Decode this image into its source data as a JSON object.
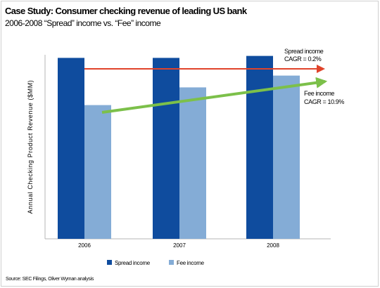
{
  "title": "Case Study: Consumer checking revenue of leading US bank",
  "subtitle": "2006-2008 “Spread” income vs. “Fee” income",
  "source": "Source: SEC Filings, Oliver Wyman analysis",
  "colors": {
    "spread": "#0f4c9e",
    "fee": "#84acd6",
    "spread_arrow": "#e0432a",
    "fee_arrow": "#7cc04a"
  },
  "chart_data": {
    "type": "bar",
    "categories": [
      "2006",
      "2007",
      "2008"
    ],
    "ylabel": "Annual Checking Product Revenue ($MM)",
    "ylim": [
      0,
      100
    ],
    "y_ticks_shown": false,
    "series": [
      {
        "name": "Spread income",
        "values": [
          92,
          92,
          93
        ]
      },
      {
        "name": "Fee income",
        "values": [
          68,
          77,
          83
        ]
      }
    ],
    "legend_position": "bottom",
    "annotations": [
      {
        "label": "Spread income",
        "value": "CAGR = 0.2%",
        "trend": "flat"
      },
      {
        "label": "Fee income",
        "value": "CAGR = 10.9%",
        "trend": "up"
      }
    ]
  }
}
